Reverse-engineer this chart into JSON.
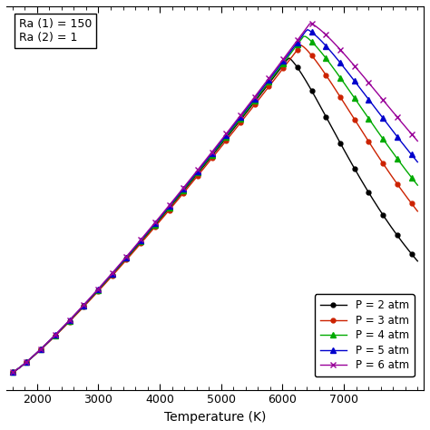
{
  "title": "",
  "xlabel": "Temperature (K)",
  "ylabel": "",
  "annotation": "Ra (1) = 150\nRa (2) = 1",
  "xlim": [
    1500,
    8300
  ],
  "xticks": [
    2000,
    3000,
    4000,
    5000,
    6000,
    7000
  ],
  "T_min": 1600,
  "T_max": 8200,
  "series": [
    {
      "label": "P = 2 atm",
      "color": "#000000",
      "marker": "o",
      "peak_T": 6100,
      "peak_val": 1.0,
      "drop_scale": 2.8,
      "markersize": 3.5
    },
    {
      "label": "P = 3 atm",
      "color": "#cc2200",
      "marker": "o",
      "peak_T": 6300,
      "peak_val": 1.04,
      "drop_scale": 2.3,
      "markersize": 3.5
    },
    {
      "label": "P = 4 atm",
      "color": "#00aa00",
      "marker": "^",
      "peak_T": 6350,
      "peak_val": 1.07,
      "drop_scale": 2.0,
      "markersize": 4
    },
    {
      "label": "P = 5 atm",
      "color": "#0000cc",
      "marker": "^",
      "peak_T": 6400,
      "peak_val": 1.09,
      "drop_scale": 1.75,
      "markersize": 4
    },
    {
      "label": "P = 6 atm",
      "color": "#990099",
      "marker": "x",
      "peak_T": 6450,
      "peak_val": 1.11,
      "drop_scale": 1.55,
      "markersize": 5
    }
  ],
  "background_color": "#ffffff",
  "marker_every": 7
}
